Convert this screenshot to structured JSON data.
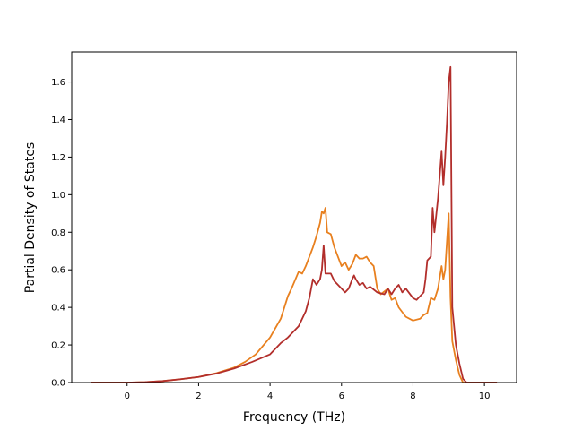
{
  "chart_data": {
    "type": "line",
    "title": "",
    "xlabel": "Frequency (THz)",
    "ylabel": "Partial Density of States",
    "xlim": [
      -1.55,
      10.9
    ],
    "ylim": [
      0,
      1.76
    ],
    "xticks": [
      0,
      2,
      4,
      6,
      8,
      10
    ],
    "yticks": [
      0.0,
      0.2,
      0.4,
      0.6,
      0.8,
      1.0,
      1.2,
      1.4,
      1.6
    ],
    "grid": false,
    "legend": "none",
    "series": [
      {
        "color": "#e8801f",
        "points": [
          [
            -1.0,
            0
          ],
          [
            0.0,
            0
          ],
          [
            0.5,
            0.002
          ],
          [
            1.0,
            0.008
          ],
          [
            1.5,
            0.018
          ],
          [
            2.0,
            0.03
          ],
          [
            2.5,
            0.05
          ],
          [
            3.0,
            0.08
          ],
          [
            3.3,
            0.11
          ],
          [
            3.6,
            0.15
          ],
          [
            4.0,
            0.24
          ],
          [
            4.3,
            0.34
          ],
          [
            4.5,
            0.46
          ],
          [
            4.6,
            0.5
          ],
          [
            4.8,
            0.59
          ],
          [
            4.9,
            0.58
          ],
          [
            5.0,
            0.62
          ],
          [
            5.2,
            0.72
          ],
          [
            5.3,
            0.78
          ],
          [
            5.4,
            0.85
          ],
          [
            5.45,
            0.91
          ],
          [
            5.5,
            0.9
          ],
          [
            5.55,
            0.93
          ],
          [
            5.6,
            0.8
          ],
          [
            5.7,
            0.79
          ],
          [
            5.8,
            0.72
          ],
          [
            6.0,
            0.62
          ],
          [
            6.1,
            0.64
          ],
          [
            6.2,
            0.6
          ],
          [
            6.3,
            0.63
          ],
          [
            6.4,
            0.68
          ],
          [
            6.5,
            0.66
          ],
          [
            6.6,
            0.66
          ],
          [
            6.7,
            0.67
          ],
          [
            6.8,
            0.64
          ],
          [
            6.9,
            0.62
          ],
          [
            7.0,
            0.5
          ],
          [
            7.1,
            0.47
          ],
          [
            7.3,
            0.5
          ],
          [
            7.4,
            0.44
          ],
          [
            7.5,
            0.45
          ],
          [
            7.6,
            0.4
          ],
          [
            7.8,
            0.35
          ],
          [
            8.0,
            0.33
          ],
          [
            8.2,
            0.34
          ],
          [
            8.3,
            0.36
          ],
          [
            8.4,
            0.37
          ],
          [
            8.5,
            0.45
          ],
          [
            8.6,
            0.44
          ],
          [
            8.7,
            0.5
          ],
          [
            8.8,
            0.62
          ],
          [
            8.85,
            0.55
          ],
          [
            8.9,
            0.6
          ],
          [
            9.0,
            0.9
          ],
          [
            9.05,
            0.45
          ],
          [
            9.1,
            0.22
          ],
          [
            9.2,
            0.12
          ],
          [
            9.3,
            0.04
          ],
          [
            9.4,
            0.0
          ],
          [
            10.35,
            0.0
          ]
        ]
      },
      {
        "color": "#b22e2b",
        "points": [
          [
            -1.0,
            0
          ],
          [
            0.0,
            0
          ],
          [
            0.5,
            0.002
          ],
          [
            1.0,
            0.008
          ],
          [
            1.5,
            0.018
          ],
          [
            2.0,
            0.03
          ],
          [
            2.5,
            0.048
          ],
          [
            3.0,
            0.075
          ],
          [
            3.5,
            0.11
          ],
          [
            4.0,
            0.15
          ],
          [
            4.3,
            0.21
          ],
          [
            4.5,
            0.24
          ],
          [
            4.7,
            0.28
          ],
          [
            4.8,
            0.3
          ],
          [
            5.0,
            0.38
          ],
          [
            5.1,
            0.45
          ],
          [
            5.2,
            0.55
          ],
          [
            5.3,
            0.52
          ],
          [
            5.4,
            0.55
          ],
          [
            5.45,
            0.6
          ],
          [
            5.5,
            0.73
          ],
          [
            5.55,
            0.58
          ],
          [
            5.7,
            0.58
          ],
          [
            5.8,
            0.54
          ],
          [
            6.0,
            0.5
          ],
          [
            6.1,
            0.48
          ],
          [
            6.2,
            0.5
          ],
          [
            6.3,
            0.55
          ],
          [
            6.35,
            0.57
          ],
          [
            6.4,
            0.55
          ],
          [
            6.5,
            0.52
          ],
          [
            6.6,
            0.53
          ],
          [
            6.7,
            0.5
          ],
          [
            6.8,
            0.51
          ],
          [
            7.0,
            0.48
          ],
          [
            7.2,
            0.47
          ],
          [
            7.3,
            0.5
          ],
          [
            7.4,
            0.47
          ],
          [
            7.5,
            0.5
          ],
          [
            7.6,
            0.52
          ],
          [
            7.7,
            0.48
          ],
          [
            7.8,
            0.5
          ],
          [
            8.0,
            0.45
          ],
          [
            8.1,
            0.44
          ],
          [
            8.2,
            0.46
          ],
          [
            8.3,
            0.48
          ],
          [
            8.35,
            0.55
          ],
          [
            8.4,
            0.65
          ],
          [
            8.5,
            0.67
          ],
          [
            8.55,
            0.93
          ],
          [
            8.6,
            0.8
          ],
          [
            8.7,
            0.98
          ],
          [
            8.8,
            1.23
          ],
          [
            8.85,
            1.05
          ],
          [
            8.9,
            1.2
          ],
          [
            8.95,
            1.38
          ],
          [
            9.0,
            1.6
          ],
          [
            9.05,
            1.68
          ],
          [
            9.1,
            0.4
          ],
          [
            9.2,
            0.2
          ],
          [
            9.3,
            0.1
          ],
          [
            9.4,
            0.02
          ],
          [
            9.5,
            0.0
          ],
          [
            10.35,
            0.0
          ]
        ]
      }
    ]
  }
}
